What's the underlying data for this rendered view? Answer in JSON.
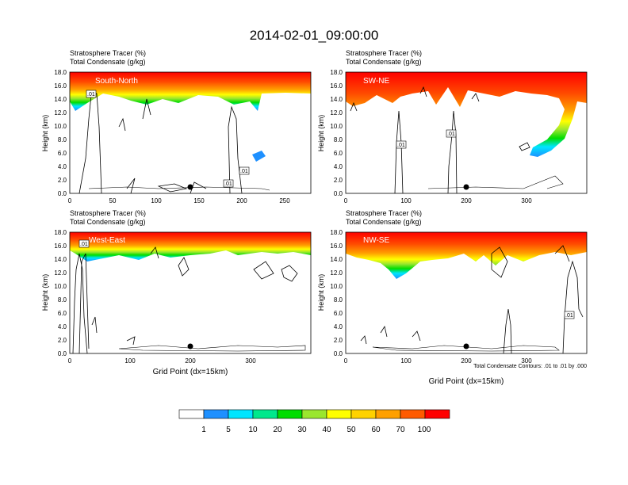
{
  "title": "2014-02-01_09:00:00",
  "panels": [
    {
      "id": "tl",
      "line1": "Stratosphere Tracer   (%)",
      "line2": "Total Condensate   (g/kg)",
      "name": "South-North",
      "ylabel": "Height (km)",
      "xlabel": "",
      "xmax": 280,
      "xticks": [
        0,
        50,
        100,
        150,
        200,
        250
      ],
      "contour_labels": [
        ".01",
        ".01",
        ".01"
      ],
      "point_x": 140
    },
    {
      "id": "tr",
      "line1": "Stratosphere Tracer   (%)",
      "line2": "Total Condensate   (g/kg)",
      "name": "SW-NE",
      "ylabel": "Height (km)",
      "xlabel": "",
      "xmax": 392,
      "xticks": [
        0,
        100,
        200,
        300
      ],
      "contour_labels": [
        ".01",
        ".01"
      ],
      "point_x": 200
    },
    {
      "id": "bl",
      "line1": "Stratosphere Tracer   (%)",
      "line2": "Total Condensate   (g/kg)",
      "name": "West-East",
      "ylabel": "Height (km)",
      "xlabel": "Grid Point (dx=15km)",
      "xmax": 392,
      "xticks": [
        0,
        100,
        200,
        300
      ],
      "contour_labels": [
        ".01"
      ],
      "point_x": 200
    },
    {
      "id": "br",
      "line1": "Stratosphere Tracer   (%)",
      "line2": "Total Condensate   (g/kg)",
      "name": "NW-SE",
      "ylabel": "Height (km)",
      "xlabel": "Grid Point (dx=15km)",
      "xmax": 392,
      "xticks": [
        0,
        100,
        200,
        300
      ],
      "contour_labels": [
        ".01"
      ],
      "point_x": 200,
      "footnote": "Total Condensate Contours: .01 to .01 by .000"
    }
  ],
  "yticks": [
    "0.0",
    "2.0",
    "4.0",
    "6.0",
    "8.0",
    "10.0",
    "12.0",
    "14.0",
    "16.0",
    "18.0"
  ],
  "colorbar": {
    "labels": [
      "1",
      "5",
      "10",
      "20",
      "30",
      "40",
      "50",
      "60",
      "70",
      "100"
    ],
    "colors": [
      "#ffffff",
      "#1e90ff",
      "#00e5ff",
      "#00e88c",
      "#00dd00",
      "#9ae62e",
      "#ffff00",
      "#ffd200",
      "#ffa000",
      "#ff5a00",
      "#ff0000"
    ]
  },
  "chart_data": {
    "type": "heatmap",
    "title": "2014-02-01_09:00:00",
    "ylabel": "Height (km)",
    "xlabel": "Grid Point (dx=15km)",
    "ylim": [
      0,
      18
    ],
    "levels": [
      1,
      5,
      10,
      20,
      30,
      40,
      50,
      60,
      70,
      100
    ],
    "panels": [
      {
        "name": "South-North",
        "xlim": [
          0,
          280
        ],
        "tracer_layer_km": [
          14.5,
          18
        ],
        "condensate_contour": 0.01,
        "marked_point": [
          140,
          1.0
        ]
      },
      {
        "name": "SW-NE",
        "xlim": [
          0,
          392
        ],
        "tracer_layer_km": [
          13,
          18
        ],
        "tongue_to_km": 6,
        "condensate_contour": 0.01,
        "marked_point": [
          200,
          1.0
        ]
      },
      {
        "name": "West-East",
        "xlim": [
          0,
          392
        ],
        "tracer_layer_km": [
          14.5,
          18
        ],
        "condensate_contour": 0.01,
        "marked_point": [
          200,
          1.0
        ]
      },
      {
        "name": "NW-SE",
        "xlim": [
          0,
          392
        ],
        "tracer_layer_km": [
          12,
          18
        ],
        "condensate_contour": 0.01,
        "marked_point": [
          200,
          1.0
        ]
      }
    ],
    "footnote": "Total Condensate Contours: .01 to .01 by .000"
  }
}
